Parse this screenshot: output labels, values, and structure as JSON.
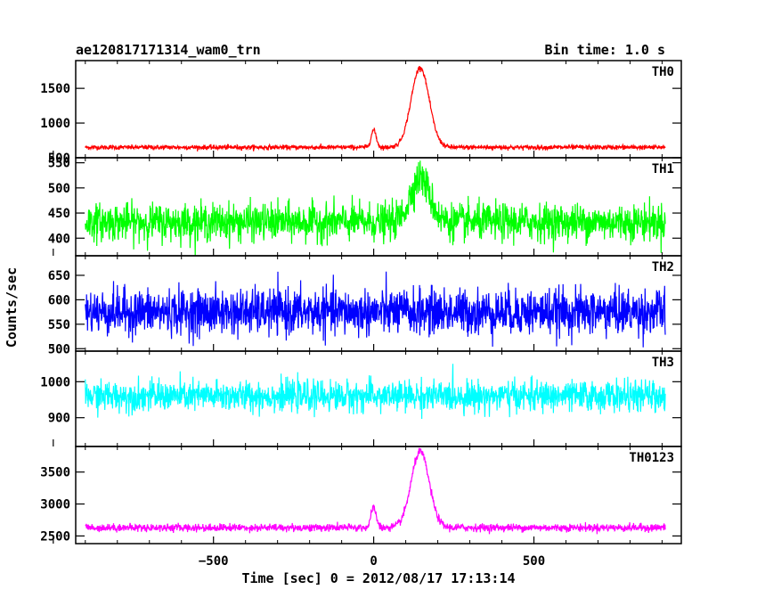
{
  "chart_data": {
    "type": "line",
    "title": "ae120817171314_wam0_trn",
    "subtitle": "Bin time: 1.0 s",
    "xlabel": "Time [sec] 0 = 2012/08/17 17:13:14",
    "ylabel": "Counts/sec",
    "xlim": [
      -930,
      960
    ],
    "xticks": [
      -500,
      0,
      500
    ],
    "xtick_labels": [
      "−500",
      "0",
      "500"
    ],
    "grid": false,
    "panels": [
      {
        "name": "TH0",
        "color": "#ff0000",
        "ylim": [
          500,
          1900
        ],
        "yticks": [
          500,
          1000,
          1500
        ],
        "ytick_labels": [
          "500",
          "1000",
          "1500"
        ],
        "baseline": 650,
        "noise": 30,
        "features": [
          {
            "center": 0,
            "peak": 900,
            "width": 8
          },
          {
            "center": 145,
            "peak": 1800,
            "width": 28
          }
        ]
      },
      {
        "name": "TH1",
        "color": "#00ff00",
        "ylim": [
          365,
          560
        ],
        "yticks": [
          400,
          450,
          500,
          550
        ],
        "ytick_labels": [
          "400",
          "450",
          "500",
          "550"
        ],
        "baseline": 432,
        "noise": 33,
        "features": [
          {
            "center": 145,
            "peak": 520,
            "width": 30
          }
        ]
      },
      {
        "name": "TH2",
        "color": "#0000ff",
        "ylim": [
          495,
          690
        ],
        "yticks": [
          500,
          550,
          600,
          650
        ],
        "ytick_labels": [
          "500",
          "550",
          "600",
          "650"
        ],
        "baseline": 575,
        "noise": 42,
        "features": []
      },
      {
        "name": "TH3",
        "color": "#00ffff",
        "ylim": [
          820,
          1085
        ],
        "yticks": [
          900,
          1000
        ],
        "ytick_labels": [
          "900",
          "1000"
        ],
        "baseline": 960,
        "noise": 38,
        "features": []
      },
      {
        "name": "TH0123",
        "color": "#ff00ff",
        "ylim": [
          2380,
          3900
        ],
        "yticks": [
          2500,
          3000,
          3500
        ],
        "ytick_labels": [
          "2500",
          "3000",
          "3500"
        ],
        "baseline": 2630,
        "noise": 55,
        "features": [
          {
            "center": 0,
            "peak": 2950,
            "width": 8
          },
          {
            "center": 145,
            "peak": 3820,
            "width": 28
          }
        ]
      }
    ]
  }
}
